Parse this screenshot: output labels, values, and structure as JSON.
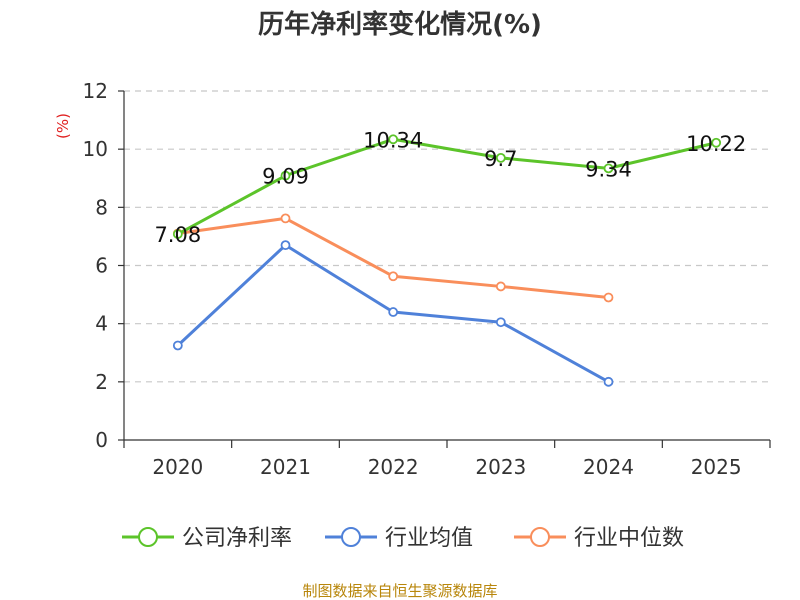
{
  "chart_data": {
    "type": "line",
    "title": "历年净利率变化情况(%)",
    "ylabel": "(%)",
    "xlabel": "",
    "ylim": [
      0,
      12
    ],
    "yticks": [
      0,
      2,
      4,
      6,
      8,
      10,
      12
    ],
    "categories": [
      "2020",
      "2021",
      "2022",
      "2023",
      "2024",
      "2025"
    ],
    "grid": true,
    "legend_position": "bottom",
    "series": [
      {
        "name": "公司净利率",
        "color": "#5cc42a",
        "values": [
          7.08,
          9.09,
          10.34,
          9.7,
          9.34,
          10.22
        ],
        "labels": [
          "7.08",
          "9.09",
          "10.34",
          "9.7",
          "9.34",
          "10.22"
        ]
      },
      {
        "name": "行业均值",
        "color": "#4f81d9",
        "values": [
          3.25,
          6.7,
          4.4,
          4.05,
          2.0,
          null
        ]
      },
      {
        "name": "行业中位数",
        "color": "#f98e5b",
        "values": [
          7.1,
          7.62,
          5.63,
          5.28,
          4.9,
          null
        ]
      }
    ],
    "source": "制图数据来自恒生聚源数据库"
  }
}
